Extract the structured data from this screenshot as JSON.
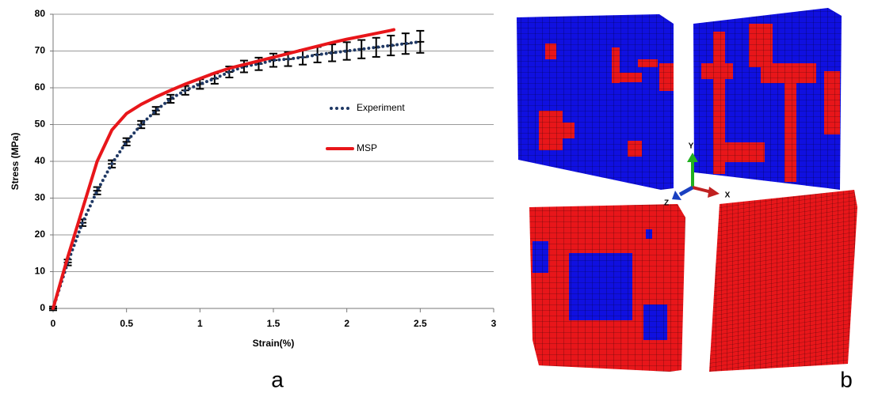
{
  "chart_data": {
    "type": "line",
    "xlabel": "Strain(%)",
    "ylabel": "Stress (MPa)",
    "xlim": [
      0,
      3
    ],
    "xticks": [
      0,
      0.5,
      1,
      1.5,
      2,
      2.5,
      3
    ],
    "ylim": [
      0,
      80
    ],
    "yticks": [
      0,
      10,
      20,
      30,
      40,
      50,
      60,
      70,
      80
    ],
    "grid": true,
    "series": [
      {
        "name": "Experiment",
        "color": "#1f3864",
        "style": "dotted",
        "x": [
          0,
          0.1,
          0.2,
          0.3,
          0.4,
          0.5,
          0.6,
          0.7,
          0.8,
          0.9,
          1.0,
          1.1,
          1.2,
          1.3,
          1.4,
          1.5,
          1.6,
          1.7,
          1.8,
          1.9,
          2.0,
          2.1,
          2.2,
          2.3,
          2.4,
          2.5
        ],
        "values": [
          0,
          12.5,
          23.3,
          32,
          39.3,
          45.3,
          50,
          53.8,
          57,
          59.3,
          61,
          62.5,
          64.3,
          65.8,
          66.5,
          67.5,
          67.8,
          68.3,
          69,
          69.5,
          70,
          70.5,
          71,
          71.5,
          72,
          72.5
        ],
        "errors": [
          0.5,
          0.8,
          0.9,
          1,
          1,
          1,
          1,
          1,
          1.1,
          1.2,
          1.3,
          1.4,
          1.5,
          1.6,
          1.7,
          1.8,
          1.9,
          2,
          2.1,
          2.3,
          2.4,
          2.5,
          2.6,
          2.7,
          2.8,
          3
        ]
      },
      {
        "name": "MSP",
        "color": "#e8161a",
        "style": "solid",
        "x": [
          0,
          0.1,
          0.2,
          0.3,
          0.4,
          0.5,
          0.6,
          0.7,
          0.8,
          0.9,
          1.0,
          1.1,
          1.2,
          1.3,
          1.4,
          1.5,
          1.6,
          1.7,
          1.8,
          1.9,
          2.0,
          2.1,
          2.2,
          2.3,
          2.32
        ],
        "values": [
          0,
          14,
          27,
          40,
          48.5,
          53,
          55.5,
          57.5,
          59.3,
          61,
          62.5,
          64,
          65.3,
          66.3,
          67.3,
          68.3,
          69.3,
          70.3,
          71.3,
          72.3,
          73.2,
          74,
          74.8,
          75.6,
          75.8
        ]
      }
    ]
  },
  "panel_a": {
    "label": "a"
  },
  "panel_b": {
    "label": "b",
    "axes": {
      "y": "Y",
      "x": "X",
      "z": "Z"
    }
  }
}
